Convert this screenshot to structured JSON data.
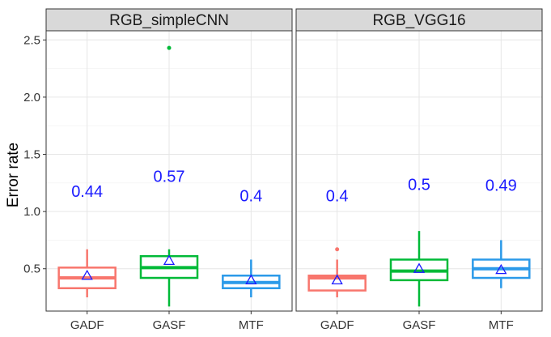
{
  "chart_data": {
    "type": "boxplot",
    "ylabel": "Error rate",
    "ylim": [
      0.13,
      2.58
    ],
    "yticks": [
      "0.5",
      "1.0",
      "1.5",
      "2.0",
      "2.5"
    ],
    "categories": [
      "GADF",
      "GASF",
      "MTF"
    ],
    "grid": true,
    "legend": "none",
    "annotation_color": "#1a1aff",
    "mean_marker": "triangle",
    "panels": [
      {
        "title": "RGB_simpleCNN",
        "boxes": [
          {
            "category": "GADF",
            "color": "#f8766d",
            "q1": 0.33,
            "median": 0.42,
            "q3": 0.51,
            "whisker_low": 0.25,
            "whisker_high": 0.67,
            "mean": 0.44,
            "mean_label": "0.44",
            "outliers": []
          },
          {
            "category": "GASF",
            "color": "#00ba38",
            "q1": 0.42,
            "median": 0.51,
            "q3": 0.61,
            "whisker_low": 0.17,
            "whisker_high": 0.67,
            "mean": 0.57,
            "mean_label": "0.57",
            "outliers": [
              2.43
            ]
          },
          {
            "category": "MTF",
            "color": "#2b9ae9",
            "q1": 0.33,
            "median": 0.38,
            "q3": 0.44,
            "whisker_low": 0.25,
            "whisker_high": 0.58,
            "mean": 0.4,
            "mean_label": "0.4",
            "outliers": []
          }
        ]
      },
      {
        "title": "RGB_VGG16",
        "boxes": [
          {
            "category": "GADF",
            "color": "#f8766d",
            "q1": 0.31,
            "median": 0.42,
            "q3": 0.44,
            "whisker_low": 0.25,
            "whisker_high": 0.58,
            "mean": 0.4,
            "mean_label": "0.4",
            "outliers": [
              0.67
            ]
          },
          {
            "category": "GASF",
            "color": "#00ba38",
            "q1": 0.4,
            "median": 0.48,
            "q3": 0.58,
            "whisker_low": 0.17,
            "whisker_high": 0.83,
            "mean": 0.5,
            "mean_label": "0.5",
            "outliers": []
          },
          {
            "category": "MTF",
            "color": "#2b9ae9",
            "q1": 0.42,
            "median": 0.5,
            "q3": 0.58,
            "whisker_low": 0.33,
            "whisker_high": 0.75,
            "mean": 0.49,
            "mean_label": "0.49",
            "outliers": []
          }
        ]
      }
    ]
  }
}
